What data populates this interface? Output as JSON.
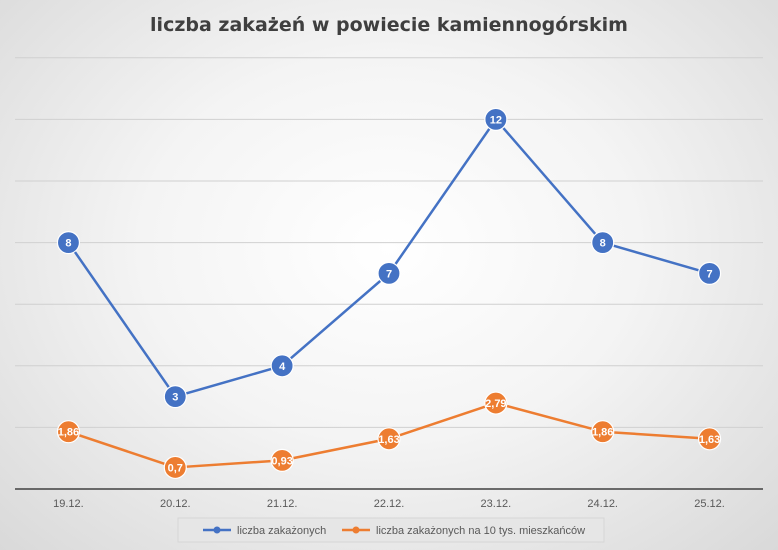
{
  "chart_data": {
    "type": "line",
    "title": "liczba zakażeń w powiecie kamiennogórskim",
    "categories": [
      "19.12.",
      "20.12.",
      "21.12.",
      "22.12.",
      "23.12.",
      "24.12.",
      "25.12."
    ],
    "ylim": [
      0,
      14
    ],
    "grid": true,
    "legend_position": "bottom",
    "series": [
      {
        "name": "liczba zakażonych",
        "values": [
          8,
          3,
          4,
          7,
          12,
          8,
          7
        ],
        "labels": [
          "8",
          "3",
          "4",
          "7",
          "12",
          "8",
          "7"
        ],
        "color": "#4472c4"
      },
      {
        "name": "liczba zakażonych na 10 tys. mieszkańców",
        "values": [
          1.86,
          0.7,
          0.93,
          1.63,
          2.79,
          1.86,
          1.63
        ],
        "labels": [
          "1,86",
          "0,7",
          "0,93",
          "1,63",
          "2,79",
          "1,86",
          "1,63"
        ],
        "color": "#ed7d31"
      }
    ]
  }
}
